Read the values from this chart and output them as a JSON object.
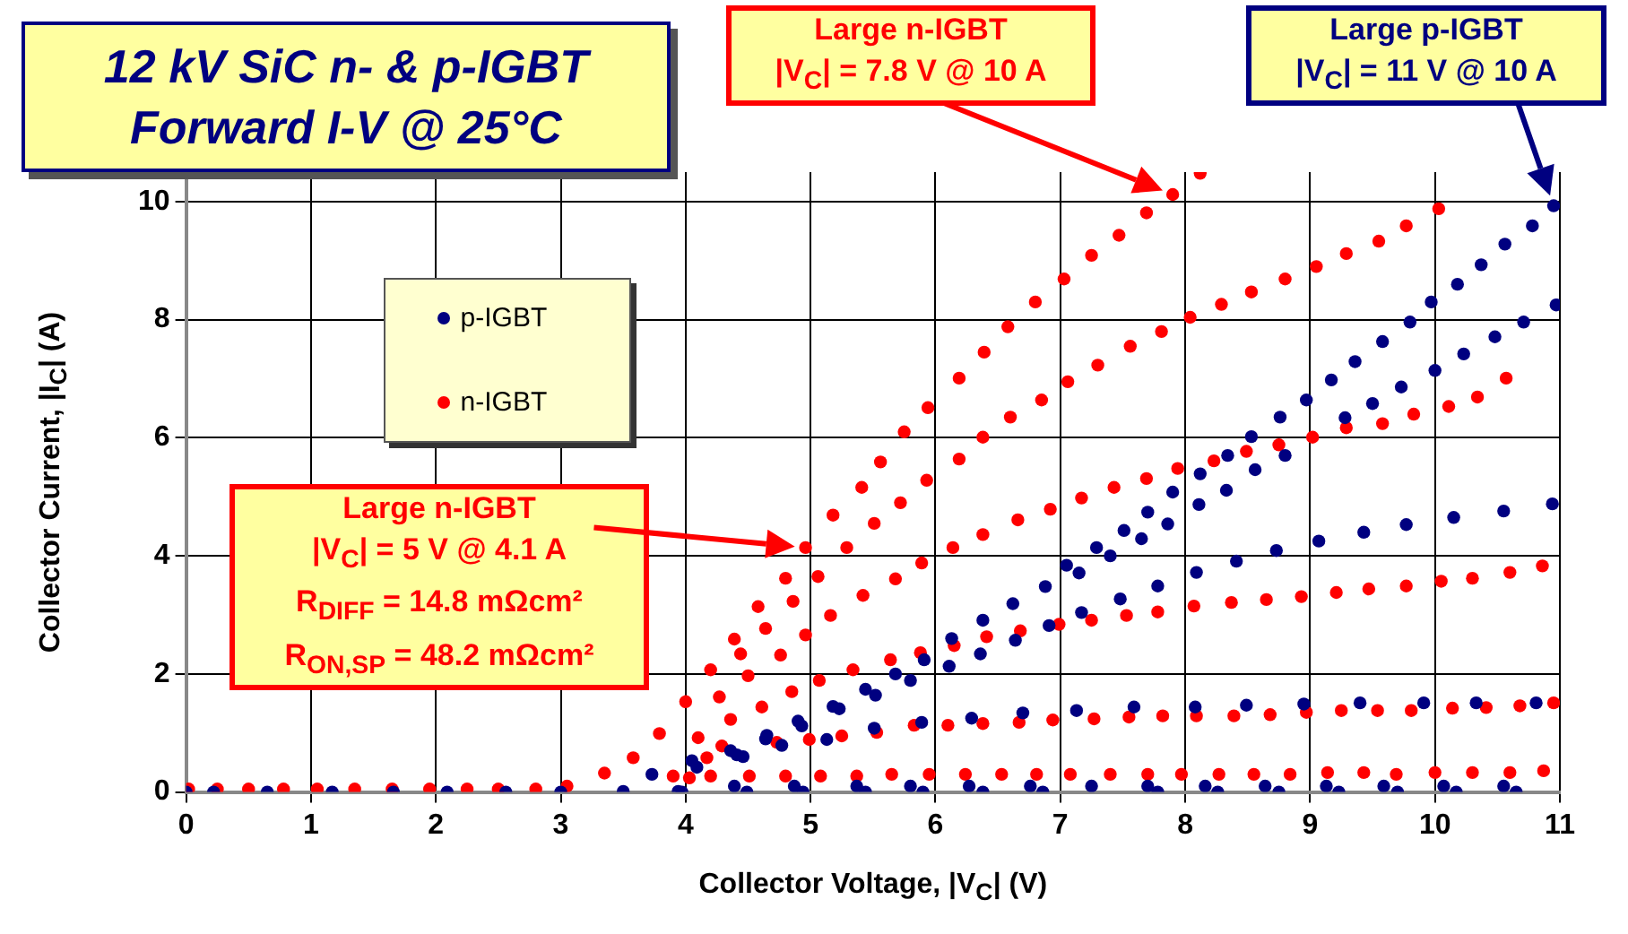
{
  "chart_data": {
    "type": "scatter",
    "title": "12 kV SiC n- & p-IGBT\nForward I-V @ 25°C",
    "xlabel": "Collector Voltage, |V$_{C}$| (V)",
    "ylabel": "Collector Current, |I$_{C}$| (A)",
    "xlim": [
      0,
      11
    ],
    "xticks": [
      0,
      1,
      2,
      3,
      4,
      5,
      6,
      7,
      8,
      9,
      10,
      11
    ],
    "ylim": [
      0,
      10.5
    ],
    "yticks": [
      0,
      2,
      4,
      6,
      8,
      10
    ],
    "grid": true,
    "legend": "left",
    "marker": "circle",
    "annotations": [
      "Large n-IGBT\n|V$_{C}$| = 7.8 V @ 10 A",
      "Large p-IGBT\n|V$_{C}$| = 11 V @ 10 A",
      "Large n-IGBT\n|V$_{C}$| = 5 V @ 4.1 A\nR$_{DIFF}$ = 14.8 mΩcm²\nR$_{ON,SP}$ = 48.2 mΩcm²"
    ],
    "series": [
      {
        "name": "p-IGBT",
        "color": "#000080",
        "x": [
          0,
          0.22,
          0.65,
          1.17,
          1.66,
          2.09,
          2.56,
          3.0,
          3.5,
          3.73,
          4.05,
          4.36,
          4.65,
          4.9,
          5.18,
          5.44,
          5.68,
          5.91,
          6.13,
          6.38,
          6.62,
          6.88,
          7.05,
          7.29,
          7.51,
          7.7,
          7.9,
          8.12,
          8.34,
          8.53,
          8.76,
          8.97,
          9.17,
          9.36,
          9.58,
          9.8,
          9.97,
          10.18,
          10.37,
          10.56,
          10.78,
          10.95,
          3.94,
          4.09,
          4.41,
          4.64,
          4.93,
          5.23,
          5.52,
          5.8,
          6.11,
          6.36,
          6.64,
          6.91,
          7.17,
          7.48,
          7.78,
          8.09,
          8.41,
          8.73,
          9.07,
          9.43,
          9.77,
          10.15,
          10.55,
          10.94,
          7.15,
          7.4,
          7.65,
          7.86,
          8.11,
          8.33,
          8.56,
          8.8,
          9.28,
          9.5,
          9.73,
          10.0,
          10.23,
          10.48,
          10.71,
          10.97,
          4.46,
          4.77,
          5.13,
          5.51,
          5.89,
          6.29,
          6.7,
          7.13,
          7.59,
          8.08,
          8.49,
          8.95,
          9.4,
          9.91,
          10.33,
          10.81,
          3.97,
          4.39,
          4.49,
          4.87,
          4.94,
          5.37,
          5.44,
          5.8,
          5.9,
          6.27,
          6.38,
          6.76,
          6.86,
          7.25,
          7.7,
          7.78,
          8.16,
          8.26,
          8.64,
          8.75,
          9.13,
          9.23,
          9.59,
          9.7,
          10.07,
          10.17,
          10.55,
          10.65
        ],
        "values": [
          0,
          0,
          0,
          0,
          0,
          0,
          0,
          0,
          0.01,
          0.3,
          0.53,
          0.7,
          0.96,
          1.2,
          1.45,
          1.74,
          2.0,
          2.24,
          2.6,
          2.91,
          3.19,
          3.48,
          3.84,
          4.14,
          4.43,
          4.74,
          5.08,
          5.39,
          5.7,
          6.02,
          6.35,
          6.64,
          6.98,
          7.29,
          7.63,
          7.96,
          8.3,
          8.6,
          8.93,
          9.28,
          9.59,
          9.93,
          0.01,
          0.42,
          0.63,
          0.9,
          1.12,
          1.41,
          1.64,
          1.89,
          2.13,
          2.34,
          2.57,
          2.82,
          3.04,
          3.27,
          3.49,
          3.72,
          3.91,
          4.09,
          4.25,
          4.4,
          4.53,
          4.65,
          4.76,
          4.88,
          3.71,
          4.0,
          4.29,
          4.54,
          4.87,
          5.11,
          5.46,
          5.7,
          6.34,
          6.58,
          6.86,
          7.14,
          7.42,
          7.71,
          7.96,
          8.25,
          0.6,
          0.79,
          0.89,
          1.08,
          1.18,
          1.25,
          1.34,
          1.38,
          1.44,
          1.44,
          1.47,
          1.49,
          1.51,
          1.51,
          1.51,
          1.51,
          0,
          0.1,
          0,
          0.1,
          0,
          0.1,
          0,
          0.1,
          0,
          0.1,
          0,
          0.1,
          0,
          0.1,
          0.1,
          0,
          0.1,
          0,
          0.1,
          0,
          0.1,
          0,
          0.1,
          0,
          0.1,
          0,
          0.1,
          0
        ]
      },
      {
        "name": "n-IGBT",
        "color": "#ff0000",
        "x": [
          0.02,
          0.25,
          0.5,
          0.78,
          1.05,
          1.35,
          1.65,
          1.95,
          2.25,
          2.5,
          2.8,
          3.05,
          3.35,
          3.58,
          3.79,
          4.0,
          4.2,
          4.39,
          4.58,
          4.8,
          4.96,
          5.18,
          5.41,
          5.56,
          5.75,
          5.94,
          6.19,
          6.39,
          6.58,
          6.8,
          7.03,
          7.25,
          7.47,
          7.69,
          7.9,
          8.12,
          3.9,
          4.1,
          4.27,
          4.44,
          4.64,
          4.86,
          5.06,
          5.29,
          5.51,
          5.72,
          5.93,
          6.19,
          6.38,
          6.6,
          6.85,
          7.06,
          7.3,
          7.56,
          7.81,
          8.04,
          8.29,
          8.53,
          8.8,
          9.05,
          9.29,
          9.55,
          9.77,
          10.03,
          4.03,
          4.17,
          4.36,
          4.5,
          4.76,
          4.96,
          5.16,
          5.42,
          5.68,
          5.89,
          6.14,
          6.38,
          6.66,
          6.92,
          7.17,
          7.43,
          7.69,
          7.94,
          8.23,
          8.49,
          8.75,
          9.02,
          9.29,
          9.58,
          9.83,
          10.11,
          10.34,
          10.57,
          4.2,
          4.29,
          4.61,
          4.85,
          5.07,
          5.34,
          5.64,
          5.88,
          6.15,
          6.41,
          6.68,
          6.99,
          7.25,
          7.53,
          7.78,
          8.07,
          8.37,
          8.65,
          8.93,
          9.21,
          9.47,
          9.77,
          10.05,
          10.3,
          10.6,
          10.86,
          4.51,
          4.73,
          4.99,
          5.25,
          5.53,
          5.83,
          6.1,
          6.38,
          6.67,
          6.94,
          7.27,
          7.55,
          7.82,
          8.09,
          8.39,
          8.68,
          8.97,
          9.25,
          9.54,
          9.81,
          10.14,
          10.41,
          10.68,
          10.95,
          4.8,
          5.08,
          5.37,
          5.65,
          5.95,
          6.24,
          6.53,
          6.81,
          7.08,
          7.4,
          7.7,
          7.97,
          8.27,
          8.55,
          8.84,
          9.14,
          9.43,
          9.69,
          10.0,
          10.3,
          10.6,
          10.87
        ],
        "values": [
          0.05,
          0.05,
          0.05,
          0.05,
          0.05,
          0.05,
          0.05,
          0.05,
          0.05,
          0.05,
          0.05,
          0.1,
          0.32,
          0.58,
          0.99,
          1.53,
          2.07,
          2.59,
          3.14,
          3.62,
          4.14,
          4.69,
          5.16,
          5.59,
          6.1,
          6.51,
          7.01,
          7.45,
          7.88,
          8.3,
          8.69,
          9.09,
          9.43,
          9.81,
          10.12,
          10.48,
          0.27,
          0.92,
          1.61,
          2.34,
          2.77,
          3.23,
          3.65,
          4.14,
          4.55,
          4.9,
          5.28,
          5.64,
          6.01,
          6.35,
          6.64,
          6.95,
          7.23,
          7.55,
          7.8,
          8.04,
          8.26,
          8.47,
          8.69,
          8.9,
          9.12,
          9.33,
          9.59,
          9.88,
          0.24,
          0.58,
          1.23,
          1.97,
          2.32,
          2.66,
          2.99,
          3.33,
          3.61,
          3.88,
          4.14,
          4.36,
          4.61,
          4.79,
          4.98,
          5.16,
          5.31,
          5.48,
          5.61,
          5.77,
          5.88,
          6.01,
          6.17,
          6.24,
          6.4,
          6.53,
          6.69,
          7.01,
          0.27,
          0.78,
          1.44,
          1.7,
          1.89,
          2.07,
          2.24,
          2.36,
          2.48,
          2.63,
          2.73,
          2.84,
          2.91,
          2.99,
          3.05,
          3.15,
          3.21,
          3.26,
          3.31,
          3.38,
          3.44,
          3.49,
          3.57,
          3.62,
          3.72,
          3.83,
          0.27,
          0.84,
          0.89,
          0.95,
          1.01,
          1.13,
          1.13,
          1.16,
          1.18,
          1.22,
          1.24,
          1.27,
          1.29,
          1.29,
          1.29,
          1.31,
          1.35,
          1.38,
          1.38,
          1.38,
          1.42,
          1.43,
          1.46,
          1.51,
          0.27,
          0.27,
          0.27,
          0.3,
          0.3,
          0.3,
          0.3,
          0.3,
          0.3,
          0.3,
          0.3,
          0.3,
          0.3,
          0.3,
          0.3,
          0.33,
          0.33,
          0.3,
          0.33,
          0.33,
          0.33,
          0.36
        ]
      }
    ]
  }
}
